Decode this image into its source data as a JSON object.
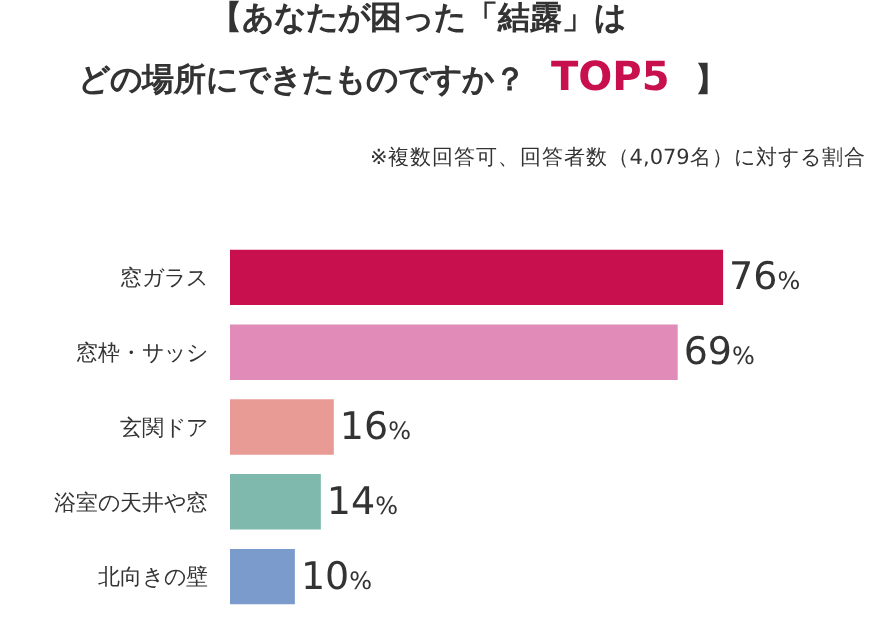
{
  "chart_data": {
    "type": "bar",
    "orientation": "horizontal",
    "title": "【あなたが困った「結露」は",
    "subtitle": "どの場所にできたものですか？ TOP5 】",
    "annotations": [
      "※複数回答可、回答者数（4,079名）に対する割合"
    ],
    "categories": [
      "窓ガラス",
      "窓枠・サッシ",
      "玄関ドア",
      "浴室の天井や窓",
      "北向きの壁"
    ],
    "values": [
      76,
      69,
      16,
      14,
      10
    ],
    "colors": [
      "#c8104e",
      "#e08bb8",
      "#e89a94",
      "#7fb9ad",
      "#7b9bcc"
    ],
    "value_labels": [
      "76%",
      "69%",
      "16%",
      "14%",
      "10%"
    ],
    "legend": false
  }
}
